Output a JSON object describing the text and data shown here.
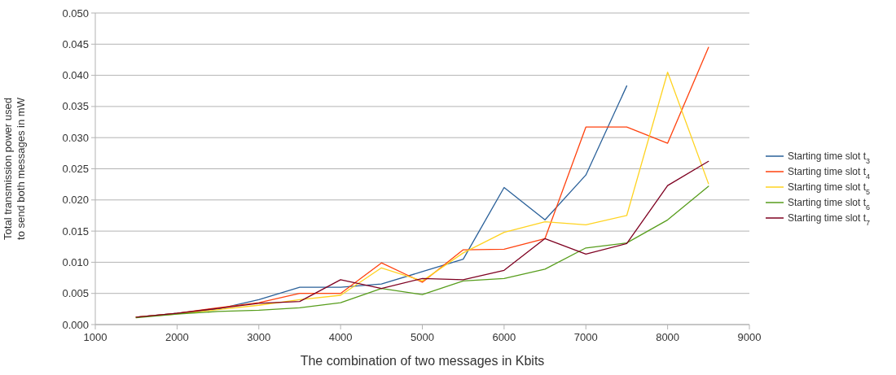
{
  "chart_data": {
    "type": "line",
    "xlabel": "The combination of two messages in Kbits",
    "ylabel": "Total transmission power used\nto send both messages in mW",
    "x": [
      1500,
      2000,
      2500,
      3000,
      3500,
      4000,
      4500,
      5000,
      5500,
      6000,
      6500,
      7000,
      7500,
      8000,
      8500
    ],
    "series": [
      {
        "name": "Starting time slot t$_{3}$",
        "color": "#2a6099",
        "x": [
          1500,
          2000,
          2500,
          3000,
          3500,
          4000,
          4500,
          5000,
          5500,
          6000,
          6500,
          7000,
          7500
        ],
        "values": [
          0.0012,
          0.0018,
          0.0025,
          0.004,
          0.006,
          0.006,
          0.0065,
          0.0085,
          0.0105,
          0.022,
          0.0168,
          0.024,
          0.0383
        ]
      },
      {
        "name": "Starting time slot t$_{4}$",
        "color": "#ff420e",
        "values": [
          0.0012,
          0.0018,
          0.0027,
          0.0035,
          0.005,
          0.005,
          0.0099,
          0.0068,
          0.012,
          0.0121,
          0.0138,
          0.0317,
          0.0317,
          0.0291,
          0.0445
        ]
      },
      {
        "name": "Starting time slot t$_{5}$",
        "color": "#ffd320",
        "values": [
          0.0012,
          0.0017,
          0.0024,
          0.0031,
          0.004,
          0.0047,
          0.0091,
          0.007,
          0.0115,
          0.0148,
          0.0165,
          0.016,
          0.0175,
          0.0405,
          0.0226
        ]
      },
      {
        "name": "Starting time slot t$_{6}$",
        "color": "#579d1c",
        "values": [
          0.0011,
          0.0017,
          0.0021,
          0.0023,
          0.0027,
          0.0035,
          0.0058,
          0.0048,
          0.007,
          0.0074,
          0.0089,
          0.0123,
          0.0131,
          0.0168,
          0.0222
        ]
      },
      {
        "name": "Starting time slot t$_{7}$",
        "color": "#7e0021",
        "values": [
          0.0012,
          0.0018,
          0.0026,
          0.0034,
          0.0037,
          0.0072,
          0.0058,
          0.0074,
          0.0072,
          0.0087,
          0.0138,
          0.0113,
          0.013,
          0.0223,
          0.0262
        ]
      }
    ],
    "xlim": [
      1000,
      9000
    ],
    "xticks": [
      1000,
      2000,
      3000,
      4000,
      5000,
      6000,
      7000,
      8000,
      9000
    ],
    "ylim": [
      0,
      0.05
    ],
    "yticks": [
      {
        "value": 0,
        "label": "0.000"
      },
      {
        "value": 0.005,
        "label": "0.005"
      },
      {
        "value": 0.01,
        "label": "0.010"
      },
      {
        "value": 0.015,
        "label": "0.015"
      },
      {
        "value": 0.02,
        "label": "0.020"
      },
      {
        "value": 0.025,
        "label": "0.025"
      },
      {
        "value": 0.03,
        "label": "0.030"
      },
      {
        "value": 0.035,
        "label": "0.035"
      },
      {
        "value": 0.04,
        "label": "0.040"
      },
      {
        "value": 0.045,
        "label": "0.045"
      },
      {
        "value": 0.05,
        "label": "0.050"
      }
    ],
    "grid": "y",
    "legend": "right",
    "marker": "none",
    "line_style": "solid"
  }
}
